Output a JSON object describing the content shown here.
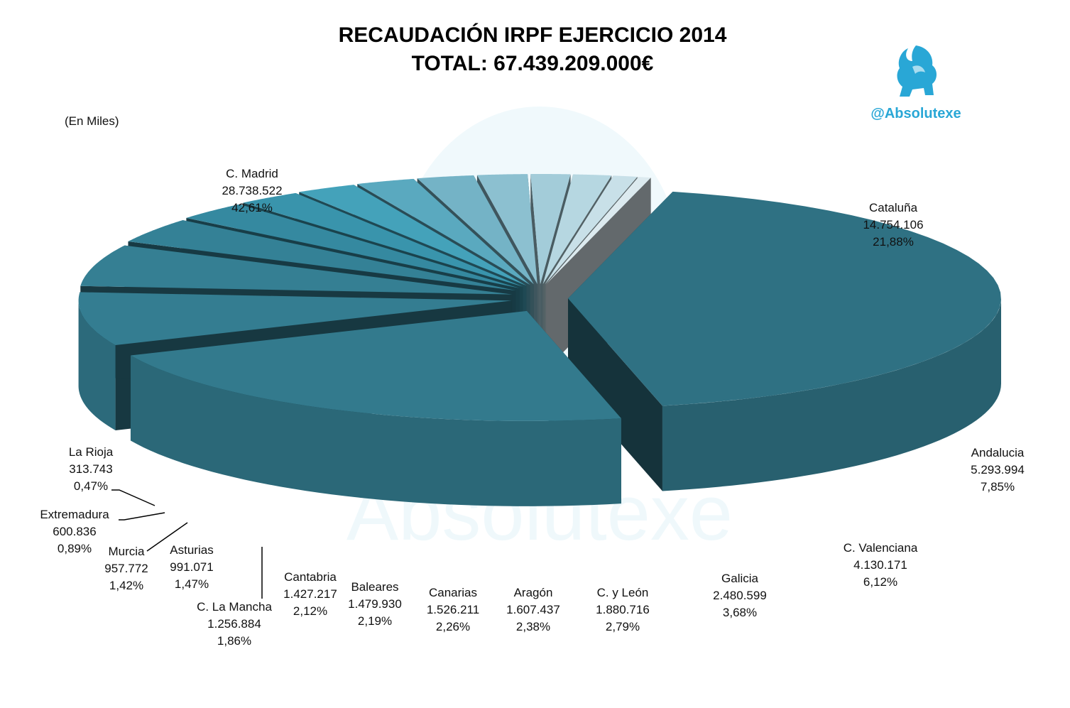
{
  "header": {
    "title_line1": "RECAUDACIÓN IRPF EJERCICIO 2014",
    "title_line2": "TOTAL: 67.439.209.000€"
  },
  "units_note": "(En Miles)",
  "brand": {
    "handle": "@Absolutexe",
    "icon": "griffin-logo-icon",
    "watermark": "Absolutexe",
    "color": "#29a7d6"
  },
  "chart_data": {
    "type": "pie",
    "style": "3d-exploded",
    "title": "RECAUDACIÓN IRPF EJERCICIO 2014",
    "subtitle": "TOTAL: 67.439.209.000€",
    "unit": "(En Miles)",
    "slices": [
      {
        "label": "C. Madrid",
        "value": 28738522,
        "value_text": "28.738.522",
        "pct_text": "42,61%",
        "color": "#2f7183"
      },
      {
        "label": "Cataluña",
        "value": 14754106,
        "value_text": "14.754.106",
        "pct_text": "21,88%",
        "color": "#337a8d"
      },
      {
        "label": "Andalucia",
        "value": 5293994,
        "value_text": "5.293.994",
        "pct_text": "7,85%",
        "color": "#347d91"
      },
      {
        "label": "C. Valenciana",
        "value": 4130171,
        "value_text": "4.130.171",
        "pct_text": "6,12%",
        "color": "#357f93"
      },
      {
        "label": "Galicia",
        "value": 2480599,
        "value_text": "2.480.599",
        "pct_text": "3,68%",
        "color": "#348196"
      },
      {
        "label": "C. y León",
        "value": 1880716,
        "value_text": "1.880.716",
        "pct_text": "2,79%",
        "color": "#3589a0"
      },
      {
        "label": "Aragón",
        "value": 1607437,
        "value_text": "1.607.437",
        "pct_text": "2,38%",
        "color": "#3994ac"
      },
      {
        "label": "Canarias",
        "value": 1526211,
        "value_text": "1.526.211",
        "pct_text": "2,26%",
        "color": "#44a2ba"
      },
      {
        "label": "Baleares",
        "value": 1479930,
        "value_text": "1.479.930",
        "pct_text": "2,19%",
        "color": "#5aa9bf"
      },
      {
        "label": "Cantabria",
        "value": 1427217,
        "value_text": "1.427.217",
        "pct_text": "2,12%",
        "color": "#74b3c6"
      },
      {
        "label": "C. La Mancha",
        "value": 1256884,
        "value_text": "1.256.884",
        "pct_text": "1,86%",
        "color": "#8cc0d0"
      },
      {
        "label": "Asturias",
        "value": 991071,
        "value_text": "991.071",
        "pct_text": "1,47%",
        "color": "#a3ccd9"
      },
      {
        "label": "Murcia",
        "value": 957772,
        "value_text": "957.772",
        "pct_text": "1,42%",
        "color": "#b6d7e1"
      },
      {
        "label": "Extremadura",
        "value": 600836,
        "value_text": "600.836",
        "pct_text": "0,89%",
        "color": "#c8e0e8"
      },
      {
        "label": "La Rioja",
        "value": 313743,
        "value_text": "313.743",
        "pct_text": "0,47%",
        "color": "#dceaef"
      }
    ]
  }
}
